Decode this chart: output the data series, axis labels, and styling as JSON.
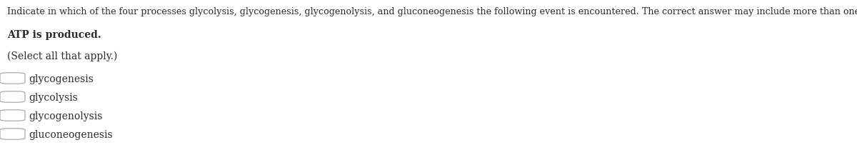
{
  "background_color": "#ffffff",
  "instruction_text": "Indicate in which of the four processes glycolysis, glycogenesis, glycogenolysis, and gluconeogenesis the following event is encountered. The correct answer may include more than one process.",
  "bold_text": "ATP is produced.",
  "select_text": "(Select all that apply.)",
  "options": [
    "glycogenesis",
    "glycolysis",
    "glycogenolysis",
    "gluconeogenesis"
  ],
  "text_color": "#2b2b2b",
  "option_text_color": "#2b2b2b",
  "instruction_fontsize": 9.2,
  "bold_fontsize": 10.0,
  "select_fontsize": 10.0,
  "option_fontsize": 10.0,
  "figwidth": 12.0,
  "figheight": 2.24,
  "dpi": 100
}
